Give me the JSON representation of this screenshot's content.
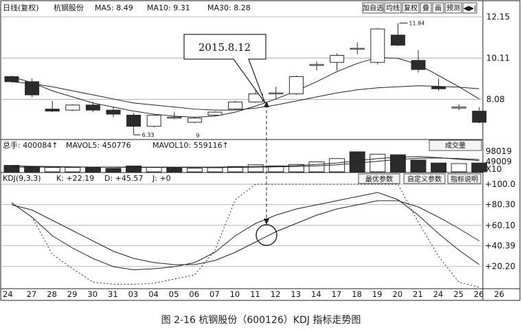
{
  "header": {
    "title": "日线(复权)",
    "stock": "杭钢股份",
    "ma5": "MA5: 8.49",
    "ma10": "MA10: 9.31",
    "ma30": "MA30: 8.28",
    "buttons": [
      "加自选",
      "均线",
      "复权",
      "叠",
      "画",
      "预测",
      "◀▶|"
    ]
  },
  "volume_header": {
    "total": "总手: 400084↑",
    "mavol5": "MAVOL5: 450776",
    "mavol10": "MAVOL10: 559116↑",
    "dropdown": "成交量"
  },
  "kdj_header": {
    "title": "KDJ(9,3,3)",
    "k": "K: +22.19",
    "d": "D: +45.57",
    "j": "J: +0",
    "buttons": [
      "最优参数",
      "自定义参数",
      "指标说明"
    ]
  },
  "annotation": {
    "label": "2015.8.12"
  },
  "caption": "图 2-16   杭钢股份（600126）KDJ 指标走势图",
  "colors": {
    "bear": "#2b2b2b",
    "bull": "#ffffff",
    "line": "#222222",
    "grid": "#888888"
  },
  "chart_data": {
    "type": "candlestick",
    "x_labels": [
      "24",
      "27",
      "28",
      "29",
      "30",
      "31",
      "03",
      "04",
      "05",
      "06",
      "07",
      "10",
      "11",
      "12",
      "13",
      "14",
      "17",
      "18",
      "19",
      "20",
      "21",
      "24",
      "25",
      "26"
    ],
    "price_ticks": [
      "12.15",
      "10.11",
      "8.08"
    ],
    "price_marks": {
      "high": "11.84",
      "low": "6.33",
      "low_label": "9"
    },
    "candles": [
      {
        "o": 9.2,
        "c": 8.95,
        "h": 9.25,
        "l": 8.9
      },
      {
        "o": 8.95,
        "c": 8.3,
        "h": 9.1,
        "l": 8.2
      },
      {
        "o": 7.6,
        "c": 7.5,
        "h": 8.0,
        "l": 7.45
      },
      {
        "o": 7.55,
        "c": 7.8,
        "h": 7.85,
        "l": 7.5
      },
      {
        "o": 7.8,
        "c": 7.55,
        "h": 7.95,
        "l": 7.45
      },
      {
        "o": 7.55,
        "c": 7.35,
        "h": 7.7,
        "l": 7.2
      },
      {
        "o": 7.3,
        "c": 6.75,
        "h": 7.4,
        "l": 6.33
      },
      {
        "o": 6.75,
        "c": 7.3,
        "h": 7.35,
        "l": 6.7
      },
      {
        "o": 7.2,
        "c": 7.2,
        "h": 7.45,
        "l": 7.1
      },
      {
        "o": 6.95,
        "c": 7.15,
        "h": 7.2,
        "l": 6.9
      },
      {
        "o": 7.3,
        "c": 7.45,
        "h": 7.5,
        "l": 7.25
      },
      {
        "o": 7.6,
        "c": 7.95,
        "h": 8.0,
        "l": 7.55
      },
      {
        "o": 7.95,
        "c": 8.35,
        "h": 8.7,
        "l": 7.9
      },
      {
        "o": 8.4,
        "c": 8.4,
        "h": 8.7,
        "l": 8.1
      },
      {
        "o": 8.35,
        "c": 9.2,
        "h": 9.25,
        "l": 8.3
      },
      {
        "o": 9.8,
        "c": 9.8,
        "h": 9.95,
        "l": 9.5
      },
      {
        "o": 9.9,
        "c": 10.25,
        "h": 10.35,
        "l": 9.5
      },
      {
        "o": 10.6,
        "c": 10.6,
        "h": 10.9,
        "l": 10.3
      },
      {
        "o": 9.9,
        "c": 11.55,
        "h": 11.6,
        "l": 9.8
      },
      {
        "o": 11.25,
        "c": 10.75,
        "h": 11.84,
        "l": 10.7
      },
      {
        "o": 10.0,
        "c": 9.55,
        "h": 10.5,
        "l": 9.4
      },
      {
        "o": 8.7,
        "c": 8.6,
        "h": 9.1,
        "l": 8.5
      },
      {
        "o": 7.7,
        "c": 7.7,
        "h": 7.85,
        "l": 7.55
      },
      {
        "o": 7.5,
        "c": 6.95,
        "h": 7.7,
        "l": 6.9
      }
    ],
    "ma_short": [
      9.2,
      8.9,
      8.5,
      8.2,
      7.9,
      7.7,
      7.5,
      7.35,
      7.25,
      7.2,
      7.25,
      7.45,
      7.75,
      8.1,
      8.5,
      8.95,
      9.45,
      9.85,
      10.15,
      10.1,
      9.8,
      9.25,
      8.7,
      8.1
    ],
    "ma_long": [
      8.95,
      8.85,
      8.7,
      8.5,
      8.3,
      8.1,
      7.9,
      7.8,
      7.7,
      7.6,
      7.55,
      7.55,
      7.65,
      7.8,
      8.0,
      8.2,
      8.4,
      8.55,
      8.65,
      8.7,
      8.75,
      8.72,
      8.68,
      8.6
    ],
    "volume_ticks": [
      "98019",
      "49009",
      "X10"
    ],
    "volume": [
      {
        "v": 0.22,
        "bear": true
      },
      {
        "v": 0.18,
        "bear": true
      },
      {
        "v": 0.15,
        "bear": false
      },
      {
        "v": 0.15,
        "bear": false
      },
      {
        "v": 0.15,
        "bear": true
      },
      {
        "v": 0.12,
        "bear": true
      },
      {
        "v": 0.2,
        "bear": true
      },
      {
        "v": 0.15,
        "bear": false
      },
      {
        "v": 0.14,
        "bear": true
      },
      {
        "v": 0.12,
        "bear": false
      },
      {
        "v": 0.14,
        "bear": false
      },
      {
        "v": 0.18,
        "bear": false
      },
      {
        "v": 0.24,
        "bear": false
      },
      {
        "v": 0.2,
        "bear": false
      },
      {
        "v": 0.25,
        "bear": false
      },
      {
        "v": 0.34,
        "bear": false
      },
      {
        "v": 0.45,
        "bear": false
      },
      {
        "v": 0.68,
        "bear": true
      },
      {
        "v": 0.6,
        "bear": false
      },
      {
        "v": 0.58,
        "bear": true
      },
      {
        "v": 0.4,
        "bear": true
      },
      {
        "v": 0.3,
        "bear": true
      },
      {
        "v": 0.28,
        "bear": false
      },
      {
        "v": 0.3,
        "bear": true
      }
    ],
    "volume_ma_a": [
      0.16,
      0.16,
      0.16,
      0.16,
      0.16,
      0.16,
      0.16,
      0.16,
      0.16,
      0.16,
      0.16,
      0.17,
      0.18,
      0.19,
      0.21,
      0.25,
      0.3,
      0.38,
      0.45,
      0.5,
      0.52,
      0.48,
      0.43,
      0.38
    ],
    "volume_ma_b": [
      0.2,
      0.19,
      0.18,
      0.17,
      0.16,
      0.16,
      0.15,
      0.15,
      0.15,
      0.15,
      0.15,
      0.15,
      0.16,
      0.17,
      0.18,
      0.2,
      0.24,
      0.3,
      0.36,
      0.42,
      0.46,
      0.47,
      0.45,
      0.42
    ],
    "kdj_ticks": [
      "+100.0",
      "+80.30",
      "+60.10",
      "+40.39",
      "+20.20"
    ],
    "kdj_k": [
      82,
      68,
      50,
      38,
      28,
      20,
      17,
      18,
      20,
      24,
      34,
      50,
      62,
      70,
      76,
      80,
      84,
      88,
      92,
      85,
      70,
      52,
      36,
      22
    ],
    "kdj_d": [
      80,
      75,
      65,
      55,
      45,
      35,
      28,
      24,
      22,
      22,
      26,
      34,
      44,
      54,
      62,
      70,
      76,
      80,
      84,
      84,
      78,
      68,
      57,
      45
    ],
    "kdj_j": [
      82,
      68,
      32,
      18,
      5,
      3,
      3,
      4,
      8,
      12,
      36,
      85,
      100,
      100,
      100,
      100,
      100,
      100,
      100,
      100,
      63,
      30,
      5,
      0
    ]
  }
}
